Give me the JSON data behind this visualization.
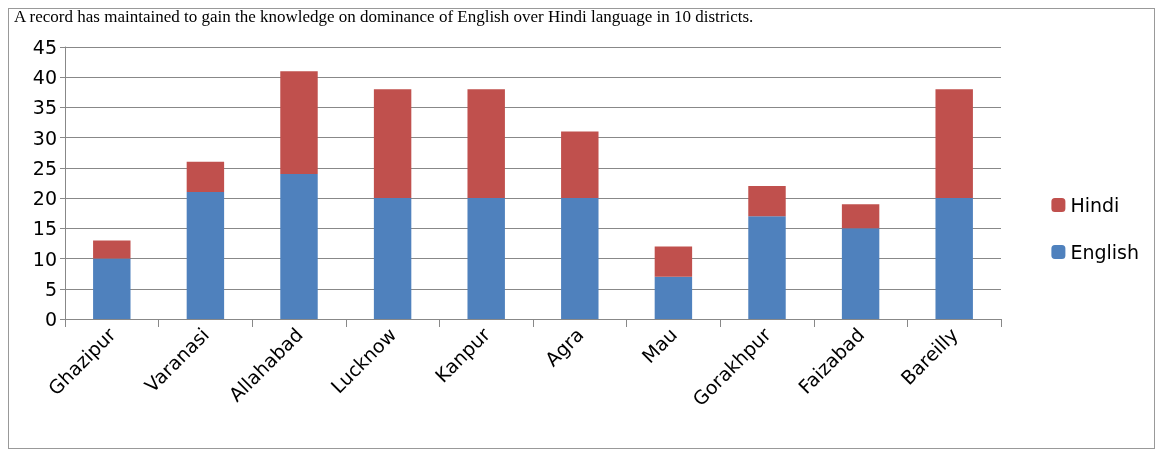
{
  "chart_data": {
    "type": "bar",
    "title": "A record has maintained to gain the knowledge on dominance of English over Hindi language in 10 districts.",
    "categories": [
      "Ghazipur",
      "Varanasi",
      "Allahabad",
      "Lucknow",
      "Kanpur",
      "Agra",
      "Mau",
      "Gorakhpur",
      "Faizabad",
      "Bareilly"
    ],
    "stacked": true,
    "series": [
      {
        "name": "English",
        "color": "#4f81bd",
        "values": [
          10,
          21,
          24,
          20,
          20,
          20,
          7,
          17,
          15,
          20
        ]
      },
      {
        "name": "Hindi",
        "color": "#c0504d",
        "values": [
          3,
          5,
          17,
          18,
          18,
          11,
          5,
          5,
          4,
          18
        ]
      }
    ],
    "ylim": [
      0,
      45
    ],
    "yticks": [
      0,
      5,
      10,
      15,
      20,
      25,
      30,
      35,
      40,
      45
    ],
    "grid": "y",
    "legend": "right"
  }
}
